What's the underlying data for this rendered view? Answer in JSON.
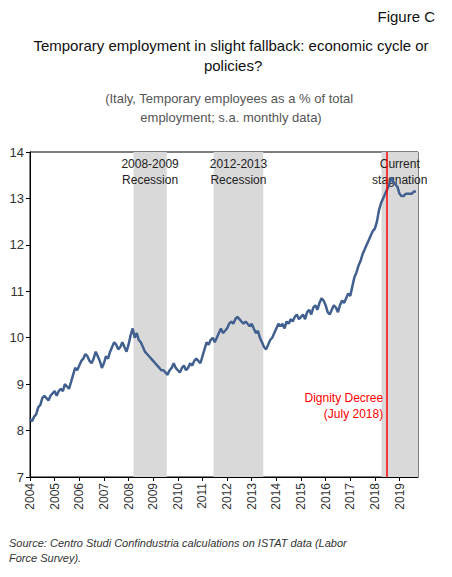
{
  "chart_data": {
    "type": "line",
    "figure_label": "Figure C",
    "title": "Temporary employment in slight fallback: economic cycle or policies?",
    "subtitle": "(Italy, Temporary employees as a % of total employment; s.a. monthly data)",
    "source": "Source: Centro Studi Confindustria calculations on ISTAT data (Labor Force Survey).",
    "color": "#41608f",
    "x": [
      2004,
      2004.083,
      2004.167,
      2004.25,
      2004.333,
      2004.417,
      2004.5,
      2004.583,
      2004.667,
      2004.75,
      2004.833,
      2004.917,
      2005,
      2005.083,
      2005.167,
      2005.25,
      2005.333,
      2005.417,
      2005.5,
      2005.583,
      2005.667,
      2005.75,
      2005.833,
      2005.917,
      2006,
      2006.083,
      2006.167,
      2006.25,
      2006.333,
      2006.417,
      2006.5,
      2006.583,
      2006.667,
      2006.75,
      2006.833,
      2006.917,
      2007,
      2007.083,
      2007.167,
      2007.25,
      2007.333,
      2007.417,
      2007.5,
      2007.583,
      2007.667,
      2007.75,
      2007.833,
      2007.917,
      2008,
      2008.083,
      2008.167,
      2008.25,
      2008.333,
      2008.417,
      2008.5,
      2008.583,
      2008.667,
      2008.75,
      2008.833,
      2008.917,
      2009,
      2009.083,
      2009.167,
      2009.25,
      2009.333,
      2009.417,
      2009.5,
      2009.583,
      2009.667,
      2009.75,
      2009.833,
      2009.917,
      2010,
      2010.083,
      2010.167,
      2010.25,
      2010.333,
      2010.417,
      2010.5,
      2010.583,
      2010.667,
      2010.75,
      2010.833,
      2010.917,
      2011,
      2011.083,
      2011.167,
      2011.25,
      2011.333,
      2011.417,
      2011.5,
      2011.583,
      2011.667,
      2011.75,
      2011.833,
      2011.917,
      2012,
      2012.083,
      2012.167,
      2012.25,
      2012.333,
      2012.417,
      2012.5,
      2012.583,
      2012.667,
      2012.75,
      2012.833,
      2012.917,
      2013,
      2013.083,
      2013.167,
      2013.25,
      2013.333,
      2013.417,
      2013.5,
      2013.583,
      2013.667,
      2013.75,
      2013.833,
      2013.917,
      2014,
      2014.083,
      2014.167,
      2014.25,
      2014.333,
      2014.417,
      2014.5,
      2014.583,
      2014.667,
      2014.75,
      2014.833,
      2014.917,
      2015,
      2015.083,
      2015.167,
      2015.25,
      2015.333,
      2015.417,
      2015.5,
      2015.583,
      2015.667,
      2015.75,
      2015.833,
      2015.917,
      2016,
      2016.083,
      2016.167,
      2016.25,
      2016.333,
      2016.417,
      2016.5,
      2016.583,
      2016.667,
      2016.75,
      2016.833,
      2016.917,
      2017,
      2017.083,
      2017.167,
      2017.25,
      2017.333,
      2017.417,
      2017.5,
      2017.583,
      2017.667,
      2017.75,
      2017.833,
      2017.917,
      2018,
      2018.083,
      2018.167,
      2018.25,
      2018.333,
      2018.417,
      2018.5,
      2018.583,
      2018.667,
      2018.75,
      2018.833,
      2018.917,
      2019,
      2019.083,
      2019.167,
      2019.25,
      2019.333,
      2019.417,
      2019.5,
      2019.583,
      2019.667
    ],
    "values": [
      8.25,
      8.2,
      8.3,
      8.35,
      8.5,
      8.55,
      8.7,
      8.75,
      8.7,
      8.65,
      8.75,
      8.8,
      8.85,
      8.75,
      8.85,
      8.9,
      8.85,
      9.0,
      8.95,
      8.9,
      9.05,
      9.2,
      9.35,
      9.3,
      9.4,
      9.5,
      9.55,
      9.65,
      9.6,
      9.5,
      9.45,
      9.55,
      9.7,
      9.6,
      9.5,
      9.35,
      9.45,
      9.6,
      9.55,
      9.7,
      9.8,
      9.9,
      9.85,
      9.75,
      9.8,
      9.9,
      9.8,
      9.7,
      9.85,
      10.05,
      10.2,
      10.0,
      10.1,
      9.95,
      9.9,
      9.8,
      9.7,
      9.65,
      9.6,
      9.55,
      9.5,
      9.45,
      9.4,
      9.35,
      9.3,
      9.3,
      9.25,
      9.2,
      9.3,
      9.35,
      9.45,
      9.35,
      9.3,
      9.25,
      9.35,
      9.4,
      9.3,
      9.35,
      9.45,
      9.4,
      9.5,
      9.55,
      9.5,
      9.45,
      9.6,
      9.75,
      9.9,
      9.85,
      9.95,
      10.0,
      9.9,
      10.0,
      10.1,
      10.2,
      10.1,
      10.15,
      10.2,
      10.3,
      10.35,
      10.3,
      10.4,
      10.45,
      10.4,
      10.35,
      10.3,
      10.35,
      10.3,
      10.25,
      10.3,
      10.2,
      10.1,
      10.15,
      10.0,
      9.9,
      9.8,
      9.75,
      9.85,
      9.95,
      10.0,
      10.1,
      10.2,
      10.3,
      10.25,
      10.3,
      10.2,
      10.35,
      10.3,
      10.4,
      10.35,
      10.45,
      10.5,
      10.4,
      10.45,
      10.5,
      10.4,
      10.55,
      10.6,
      10.5,
      10.65,
      10.7,
      10.6,
      10.75,
      10.85,
      10.8,
      10.7,
      10.55,
      10.5,
      10.6,
      10.7,
      10.65,
      10.55,
      10.7,
      10.8,
      10.75,
      10.85,
      10.95,
      10.9,
      11.1,
      11.3,
      11.4,
      11.55,
      11.65,
      11.8,
      11.9,
      12.0,
      12.1,
      12.2,
      12.3,
      12.35,
      12.5,
      12.75,
      12.9,
      13.0,
      13.1,
      13.2,
      13.3,
      13.45,
      13.35,
      13.3,
      13.25,
      13.1,
      13.05,
      13.05,
      13.1,
      13.1,
      13.1,
      13.1,
      13.15,
      13.15
    ],
    "xlim": [
      2004,
      2019.75
    ],
    "xticks": [
      2004,
      2005,
      2006,
      2007,
      2008,
      2009,
      2010,
      2011,
      2012,
      2013,
      2014,
      2015,
      2016,
      2017,
      2018,
      2019
    ],
    "ylim": [
      7,
      14
    ],
    "yticks": [
      7,
      8,
      9,
      10,
      11,
      12,
      13,
      14
    ],
    "grid": false,
    "shaded_periods": [
      {
        "label": "2008-2009\nRecession",
        "start": 2008.2,
        "end": 2009.55,
        "color": "#d9d9d9"
      },
      {
        "label": "2012-2013\nRecession",
        "start": 2011.45,
        "end": 2013.47,
        "color": "#d9d9d9"
      },
      {
        "label": "Current\nstagnation",
        "start": 2018.27,
        "end": 2019.75,
        "color": "#d9d9d9"
      }
    ],
    "annotation": {
      "label": "Dignity Decree\n(July 2018)",
      "x": 2018.5,
      "color": "#ff0000"
    }
  }
}
